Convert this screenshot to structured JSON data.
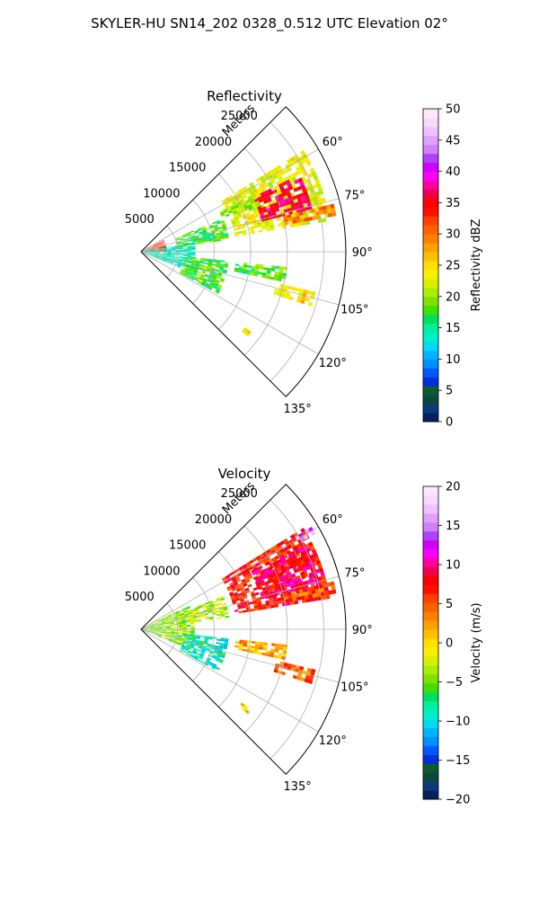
{
  "figure": {
    "suptitle": "SKYLER-HU  SN14_202  0328_0.512 UTC Elevation 02°"
  },
  "chart_data": [
    {
      "type": "heatmap",
      "subtype": "polar-ppi",
      "title": "Reflectivity",
      "radial_axis_label": "Meters",
      "radial_ticks": [
        "5000",
        "10000",
        "15000",
        "20000",
        "25000"
      ],
      "rmax": 28000,
      "theta_range_deg": [
        45,
        135
      ],
      "theta_ticks": [
        "60°",
        "75°",
        "90°",
        "105°",
        "120°",
        "135°"
      ],
      "grid": true,
      "colorbar": {
        "label": "Reflectivity dBZ",
        "min": 0,
        "max": 50,
        "ticks": [
          "0",
          "5",
          "10",
          "15",
          "20",
          "25",
          "30",
          "35",
          "40",
          "45",
          "50"
        ],
        "colors": [
          "#04215e",
          "#0a3a7a",
          "#0a4a3a",
          "#0f5a30",
          "#0030d8",
          "#0058ff",
          "#0090ff",
          "#00b4ff",
          "#00dcf0",
          "#00f0c8",
          "#00f0a0",
          "#00e060",
          "#40e000",
          "#80e000",
          "#a8f000",
          "#d8f000",
          "#f8f000",
          "#ffe000",
          "#ffc000",
          "#ffa000",
          "#ff8000",
          "#ff6000",
          "#ff4000",
          "#ff1000",
          "#ff0000",
          "#f0004a",
          "#ff00a0",
          "#ff00ff",
          "#d000ff",
          "#b040ff",
          "#d080ff",
          "#e0a0ff",
          "#f0c0ff",
          "#f8d8ff",
          "#ffe8ff"
        ]
      },
      "echo_regions": [
        {
          "th0": 58,
          "th1": 80,
          "r0": 13000,
          "r1": 26000,
          "value": 23
        },
        {
          "th0": 64,
          "th1": 76,
          "r0": 17000,
          "r1": 24000,
          "value": 36
        },
        {
          "th0": 76,
          "th1": 79,
          "r0": 20000,
          "r1": 27000,
          "value": 30
        },
        {
          "th0": 63,
          "th1": 69,
          "r0": 12000,
          "r1": 17000,
          "value": 20
        },
        {
          "th0": 68,
          "th1": 82,
          "r0": 5000,
          "r1": 12000,
          "value": 18
        },
        {
          "th0": 74,
          "th1": 80,
          "r0": 7000,
          "r1": 10000,
          "value": 16
        },
        {
          "th0": 63,
          "th1": 90,
          "r0": 200,
          "r1": 3500,
          "value": 33
        },
        {
          "th0": 80,
          "th1": 112,
          "r0": 300,
          "r1": 7000,
          "value": 14
        },
        {
          "th0": 96,
          "th1": 118,
          "r0": 6000,
          "r1": 12000,
          "value": 18
        },
        {
          "th0": 96,
          "th1": 101,
          "r0": 13000,
          "r1": 20000,
          "value": 18
        },
        {
          "th0": 103,
          "th1": 107,
          "r0": 19000,
          "r1": 24000,
          "value": 25
        },
        {
          "th0": 126,
          "th1": 128,
          "r0": 17000,
          "r1": 18500,
          "value": 24
        }
      ]
    },
    {
      "type": "heatmap",
      "subtype": "polar-ppi",
      "title": "Velocity",
      "radial_axis_label": "Meters",
      "radial_ticks": [
        "5000",
        "10000",
        "15000",
        "20000",
        "25000"
      ],
      "rmax": 28000,
      "theta_range_deg": [
        45,
        135
      ],
      "theta_ticks": [
        "60°",
        "75°",
        "90°",
        "105°",
        "120°",
        "135°"
      ],
      "grid": true,
      "colorbar": {
        "label": "Velocity (m/s)",
        "min": -20,
        "max": 20,
        "ticks": [
          "−20",
          "−15",
          "−10",
          "−5",
          "0",
          "5",
          "10",
          "15",
          "20"
        ],
        "colors": [
          "#04215e",
          "#0a3a7a",
          "#0a4a3a",
          "#0f5a30",
          "#0030d8",
          "#0058ff",
          "#0090ff",
          "#00b4ff",
          "#00dcf0",
          "#00f0c8",
          "#00f0a0",
          "#00e060",
          "#40e000",
          "#80e000",
          "#a8f000",
          "#d8f000",
          "#f8f000",
          "#ffe000",
          "#ffc000",
          "#ffa000",
          "#ff8000",
          "#ff6000",
          "#ff4000",
          "#ff1000",
          "#ff0000",
          "#f0004a",
          "#ff00a0",
          "#ff00ff",
          "#d000ff",
          "#b040ff",
          "#d080ff",
          "#e0a0ff",
          "#f0c0ff",
          "#f8d8ff",
          "#ffe8ff"
        ]
      },
      "echo_regions": [
        {
          "th0": 58,
          "th1": 80,
          "r0": 13000,
          "r1": 26000,
          "value": 7
        },
        {
          "th0": 62,
          "th1": 76,
          "r0": 17000,
          "r1": 25000,
          "value": 9
        },
        {
          "th0": 76,
          "th1": 79,
          "r0": 20000,
          "r1": 27000,
          "value": 5
        },
        {
          "th0": 59,
          "th1": 61,
          "r0": 25000,
          "r1": 27000,
          "value": 15
        },
        {
          "th0": 68,
          "th1": 82,
          "r0": 5000,
          "r1": 12000,
          "value": -3
        },
        {
          "th0": 63,
          "th1": 112,
          "r0": 200,
          "r1": 7000,
          "value": -4
        },
        {
          "th0": 96,
          "th1": 118,
          "r0": 6000,
          "r1": 12000,
          "value": -9
        },
        {
          "th0": 96,
          "th1": 101,
          "r0": 13000,
          "r1": 20000,
          "value": 2
        },
        {
          "th0": 103,
          "th1": 107,
          "r0": 19000,
          "r1": 24000,
          "value": 4
        },
        {
          "th0": 126,
          "th1": 128,
          "r0": 17000,
          "r1": 18500,
          "value": 1
        }
      ]
    }
  ]
}
